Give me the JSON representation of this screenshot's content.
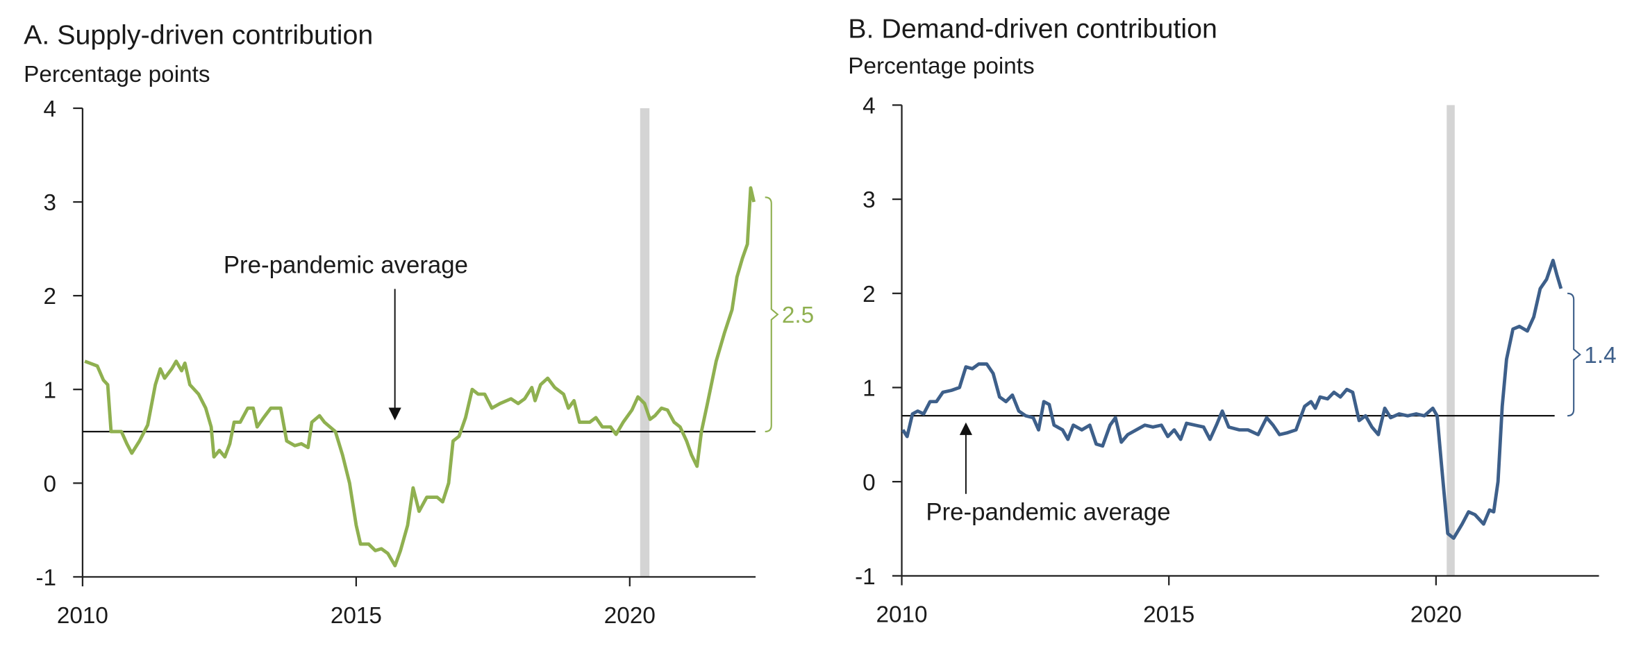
{
  "chart_data": [
    {
      "type": "line",
      "title": "A. Supply-driven contribution",
      "subtitle": "Percentage points",
      "color": "#8fb050",
      "x": [
        2010.04,
        2010.27,
        2010.38,
        2010.46,
        2010.52,
        2010.71,
        2010.81,
        2010.9,
        2011.04,
        2011.19,
        2011.33,
        2011.42,
        2011.5,
        2011.63,
        2011.71,
        2011.81,
        2011.87,
        2011.96,
        2012.12,
        2012.25,
        2012.35,
        2012.4,
        2012.5,
        2012.6,
        2012.69,
        2012.77,
        2012.88,
        2013.02,
        2013.12,
        2013.19,
        2013.31,
        2013.44,
        2013.62,
        2013.73,
        2013.88,
        2014.0,
        2014.12,
        2014.19,
        2014.33,
        2014.42,
        2014.62,
        2014.75,
        2014.88,
        2015.0,
        2015.08,
        2015.23,
        2015.35,
        2015.46,
        2015.58,
        2015.71,
        2015.81,
        2015.94,
        2016.04,
        2016.15,
        2016.29,
        2016.48,
        2016.58,
        2016.69,
        2016.77,
        2016.88,
        2017.0,
        2017.12,
        2017.23,
        2017.35,
        2017.48,
        2017.63,
        2017.83,
        2017.96,
        2018.08,
        2018.21,
        2018.27,
        2018.37,
        2018.5,
        2018.63,
        2018.79,
        2018.88,
        2018.98,
        2019.08,
        2019.27,
        2019.38,
        2019.5,
        2019.65,
        2019.75,
        2019.88,
        2020.04,
        2020.15,
        2020.27,
        2020.37,
        2020.46,
        2020.58,
        2020.69,
        2020.81,
        2020.92,
        2021.04,
        2021.13,
        2021.23,
        2021.31,
        2021.42,
        2021.58,
        2021.73,
        2021.87,
        2021.96,
        2022.06,
        2022.15,
        2022.21,
        2022.27
      ],
      "values": [
        1.3,
        1.25,
        1.1,
        1.05,
        0.55,
        0.55,
        0.42,
        0.32,
        0.45,
        0.62,
        1.05,
        1.22,
        1.12,
        1.22,
        1.3,
        1.2,
        1.28,
        1.05,
        0.95,
        0.8,
        0.6,
        0.28,
        0.35,
        0.28,
        0.42,
        0.65,
        0.65,
        0.8,
        0.8,
        0.6,
        0.7,
        0.8,
        0.8,
        0.45,
        0.4,
        0.42,
        0.38,
        0.65,
        0.72,
        0.65,
        0.55,
        0.3,
        0.0,
        -0.45,
        -0.65,
        -0.65,
        -0.72,
        -0.7,
        -0.75,
        -0.88,
        -0.72,
        -0.45,
        -0.05,
        -0.3,
        -0.15,
        -0.15,
        -0.2,
        0.0,
        0.45,
        0.5,
        0.7,
        1.0,
        0.95,
        0.95,
        0.8,
        0.85,
        0.9,
        0.85,
        0.9,
        1.02,
        0.88,
        1.05,
        1.12,
        1.02,
        0.95,
        0.8,
        0.88,
        0.65,
        0.65,
        0.7,
        0.6,
        0.6,
        0.52,
        0.65,
        0.78,
        0.92,
        0.85,
        0.68,
        0.72,
        0.8,
        0.78,
        0.65,
        0.6,
        0.45,
        0.3,
        0.18,
        0.55,
        0.85,
        1.3,
        1.6,
        1.85,
        2.2,
        2.4,
        2.55,
        3.15,
        3.0
      ],
      "xlim": [
        2010,
        2022.3
      ],
      "xticks": [
        2010,
        2015,
        2020
      ],
      "ylim": [
        -1,
        4
      ],
      "yticks": [
        -1,
        0,
        1,
        2,
        3,
        4
      ],
      "shaded_x": [
        2020.19,
        2020.36
      ],
      "reference_line": 0.55,
      "reference_line_end": 2022.3,
      "annotation": "Pre-pandemic average",
      "bracket": {
        "low": 0.55,
        "high": 3.05,
        "value": 2.5
      }
    },
    {
      "type": "line",
      "title": "B. Demand-driven contribution",
      "subtitle": "Percentage points",
      "color": "#3d5f8a",
      "x": [
        2010.02,
        2010.1,
        2010.2,
        2010.3,
        2010.41,
        2010.53,
        2010.65,
        2010.77,
        2010.93,
        2011.08,
        2011.2,
        2011.32,
        2011.44,
        2011.59,
        2011.71,
        2011.83,
        2011.95,
        2012.07,
        2012.19,
        2012.32,
        2012.46,
        2012.56,
        2012.66,
        2012.76,
        2012.85,
        2013.01,
        2013.11,
        2013.21,
        2013.37,
        2013.52,
        2013.64,
        2013.76,
        2013.9,
        2014.0,
        2014.11,
        2014.23,
        2014.39,
        2014.55,
        2014.7,
        2014.86,
        2014.98,
        2015.1,
        2015.22,
        2015.33,
        2015.49,
        2015.65,
        2015.77,
        2015.89,
        2016.0,
        2016.12,
        2016.32,
        2016.48,
        2016.67,
        2016.83,
        2016.95,
        2017.07,
        2017.22,
        2017.38,
        2017.54,
        2017.66,
        2017.74,
        2017.83,
        2017.97,
        2018.09,
        2018.21,
        2018.33,
        2018.44,
        2018.56,
        2018.68,
        2018.8,
        2018.92,
        2019.04,
        2019.15,
        2019.31,
        2019.47,
        2019.63,
        2019.78,
        2019.94,
        2020.02,
        2020.1,
        2020.22,
        2020.33,
        2020.49,
        2020.61,
        2020.73,
        2020.89,
        2021.0,
        2021.08,
        2021.16,
        2021.24,
        2021.32,
        2021.44,
        2021.56,
        2021.71,
        2021.83,
        2021.95,
        2022.07,
        2022.19,
        2022.26,
        2022.34
      ],
      "values": [
        0.55,
        0.48,
        0.72,
        0.75,
        0.72,
        0.85,
        0.85,
        0.95,
        0.97,
        1.0,
        1.22,
        1.2,
        1.25,
        1.25,
        1.15,
        0.9,
        0.85,
        0.92,
        0.75,
        0.7,
        0.68,
        0.55,
        0.85,
        0.82,
        0.6,
        0.55,
        0.45,
        0.6,
        0.55,
        0.6,
        0.4,
        0.38,
        0.6,
        0.68,
        0.42,
        0.5,
        0.55,
        0.6,
        0.58,
        0.6,
        0.48,
        0.55,
        0.45,
        0.62,
        0.6,
        0.58,
        0.45,
        0.6,
        0.75,
        0.58,
        0.55,
        0.55,
        0.5,
        0.68,
        0.6,
        0.5,
        0.52,
        0.55,
        0.8,
        0.85,
        0.78,
        0.9,
        0.88,
        0.95,
        0.9,
        0.98,
        0.95,
        0.65,
        0.7,
        0.58,
        0.5,
        0.78,
        0.68,
        0.72,
        0.7,
        0.72,
        0.7,
        0.78,
        0.7,
        0.2,
        -0.55,
        -0.6,
        -0.45,
        -0.32,
        -0.35,
        -0.45,
        -0.3,
        -0.32,
        0.0,
        0.8,
        1.3,
        1.62,
        1.65,
        1.6,
        1.75,
        2.05,
        2.15,
        2.35,
        2.2,
        2.05
      ],
      "xlim": [
        2010,
        2023.05
      ],
      "xticks": [
        2010,
        2015,
        2020
      ],
      "ylim": [
        -1,
        4
      ],
      "yticks": [
        -1,
        0,
        1,
        2,
        3,
        4
      ],
      "shaded_x": [
        2020.2,
        2020.35
      ],
      "reference_line": 0.7,
      "reference_line_end": 2022.22,
      "annotation": "Pre-pandemic average",
      "bracket": {
        "low": 0.7,
        "high": 2.0,
        "value": 1.4
      }
    }
  ]
}
